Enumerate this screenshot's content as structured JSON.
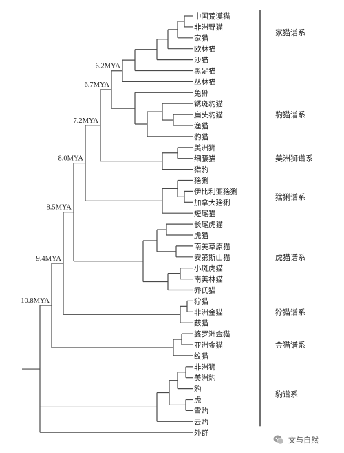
{
  "leaves": [
    "中国荒漠猫",
    "非洲野猫",
    "家猫",
    "欧林猫",
    "沙猫",
    "黑足猫",
    "丛林猫",
    "兔狲",
    "锈斑豹猫",
    "扁头豹猫",
    "渔猫",
    "豹猫",
    "美洲狮",
    "细腰猫",
    "猎豹",
    "猞猁",
    "伊比利亚猞猁",
    "加拿大猞猁",
    "短尾猫",
    "长尾虎猫",
    "虎猫",
    "南美草原猫",
    "安第斯山猫",
    "小斑虎猫",
    "南美林猫",
    "乔氏猫",
    "狞猫",
    "非洲金猫",
    "薮猫",
    "婆罗洲金猫",
    "亚洲金猫",
    "纹猫",
    "非洲狮",
    "美洲豹",
    "豹",
    "虎",
    "雪豹",
    "云豹",
    "外群"
  ],
  "nodes": {
    "n108": "10.8MYA",
    "n94": "9.4MYA",
    "n85": "8.5MYA",
    "n80": "8.0MYA",
    "n72": "7.2MYA",
    "n67": "6.7MYA",
    "n62": "6.2MYA"
  },
  "lineages": [
    "家猫谱系",
    "豹猫谱系",
    "美洲狮谱系",
    "猞猁谱系",
    "虎猫谱系",
    "狞猫谱系",
    "金猫谱系",
    "豹谱系"
  ],
  "watermark": {
    "text": "文与自然",
    "icon": "wechat-icon"
  }
}
